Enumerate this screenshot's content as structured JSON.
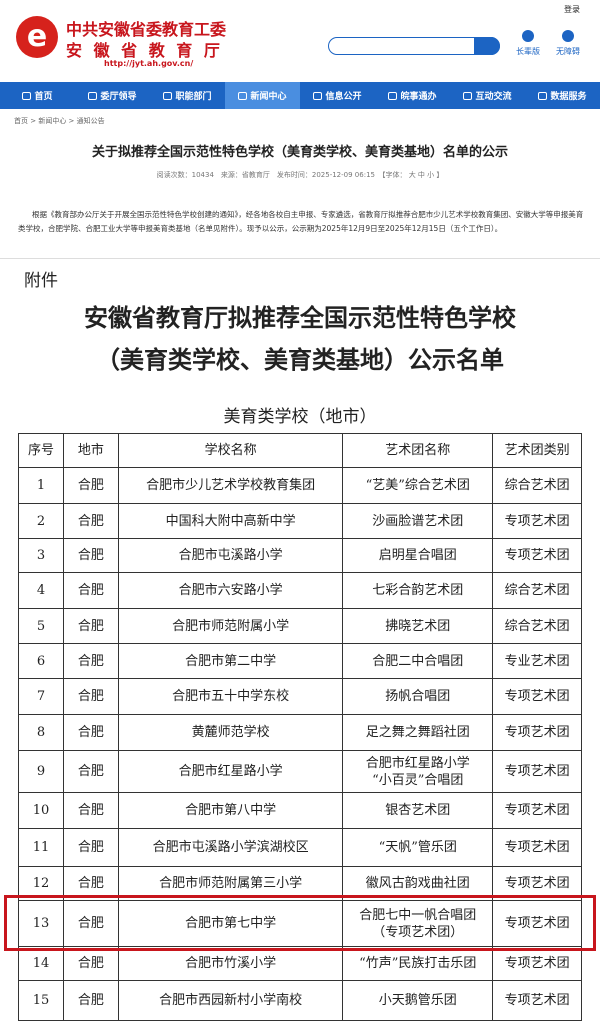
{
  "header": {
    "login": "登录",
    "site_name": "中共安徽省委教育工委",
    "site_name2": "安 徽 省 教 育 厅",
    "url": "http://jyt.ah.gov.cn/",
    "elder": "长辈版",
    "accessible": "无障碍"
  },
  "nav": [
    "首页",
    "委厅领导",
    "职能部门",
    "新闻中心",
    "信息公开",
    "皖事通办",
    "互动交流",
    "数据服务"
  ],
  "breadcrumb": [
    "首页",
    "新闻中心",
    "通知公告"
  ],
  "article": {
    "title": "关于拟推荐全国示范性特色学校（美育类学校、美育类基地）名单的公示",
    "meta": "阅读次数：10434　来源：省教育厅　发布时间：2025-12-09 06:15　【字体： 大  中  小 】",
    "body": "根据《教育部办公厅关于开展全国示范性特色学校创建的通知》，经各地各校自主申报、专家遴选，省教育厅拟推荐合肥市少儿艺术学校教育集团、安徽大学等申报美育类学校，合肥学院、合肥工业大学等申报美育类基地（名单见附件）。现予以公示，公示期为2025年12月9日至2025年12月15日（五个工作日）。"
  },
  "attachment": {
    "label": "附件",
    "title1": "安徽省教育厅拟推荐全国示范性特色学校",
    "title2": "（美育类学校、美育类基地）公示名单",
    "subtitle": "美育类学校（地市）",
    "table": {
      "header": [
        "序号",
        "地市",
        "学校名称",
        "艺术团名称",
        "艺术团类别"
      ],
      "rows": [
        [
          "1",
          "合肥",
          "合肥市少儿艺术学校教育集团",
          "“艺美”综合艺术团",
          "综合艺术团"
        ],
        [
          "2",
          "合肥",
          "中国科大附中高新中学",
          "沙画脸谱艺术团",
          "专项艺术团"
        ],
        [
          "3",
          "合肥",
          "合肥市屯溪路小学",
          "启明星合唱团",
          "专项艺术团"
        ],
        [
          "4",
          "合肥",
          "合肥市六安路小学",
          "七彩合韵艺术团",
          "综合艺术团"
        ],
        [
          "5",
          "合肥",
          "合肥市师范附属小学",
          "拂晓艺术团",
          "综合艺术团"
        ],
        [
          "6",
          "合肥",
          "合肥市第二中学",
          "合肥二中合唱团",
          "专业艺术团"
        ],
        [
          "7",
          "合肥",
          "合肥市五十中学东校",
          "扬帆合唱团",
          "专项艺术团"
        ],
        [
          "8",
          "合肥",
          "黄麓师范学校",
          "足之舞之舞蹈社团",
          "专项艺术团"
        ],
        [
          "9",
          "合肥",
          "合肥市红星路小学",
          "合肥市红星路小学\n“小百灵”合唱团",
          "专项艺术团"
        ],
        [
          "10",
          "合肥",
          "合肥市第八中学",
          "银杏艺术团",
          "专项艺术团"
        ],
        [
          "11",
          "合肥",
          "合肥市屯溪路小学滨湖校区",
          "“天帆”管乐团",
          "专项艺术团"
        ],
        [
          "12",
          "合肥",
          "合肥市师范附属第三小学",
          "徽风古韵戏曲社团",
          "专项艺术团"
        ],
        [
          "13",
          "合肥",
          "合肥市第七中学",
          "合肥七中一帆合唱团\n（专项艺术团）",
          "专项艺术团"
        ],
        [
          "14",
          "合肥",
          "合肥市竹溪小学",
          "“竹声”民族打击乐团",
          "专项艺术团"
        ],
        [
          "15",
          "合肥",
          "合肥市西园新村小学南校",
          "小天鹅管乐团",
          "专项艺术团"
        ]
      ]
    }
  }
}
